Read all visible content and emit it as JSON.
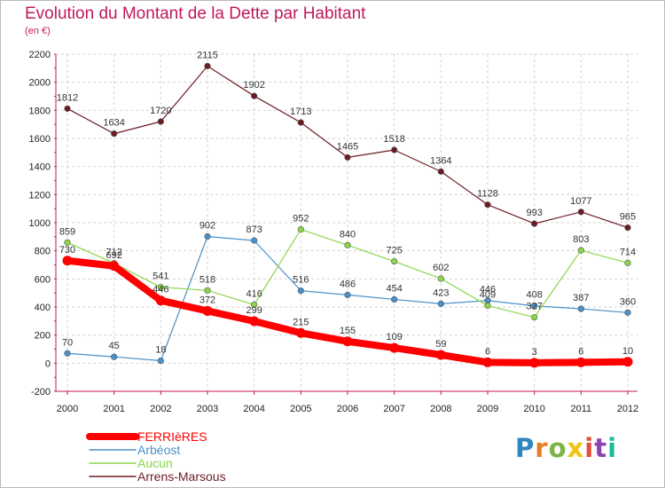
{
  "header": {
    "title": "Evolution du Montant de la Dette par Habitant",
    "subtitle": "(en €)"
  },
  "logo": {
    "text": "Proxiti",
    "colors": [
      "#2e86c1",
      "#e67e22",
      "#7cb342",
      "#f1c40f",
      "#e74c3c",
      "#8e44ad",
      "#1abc9c"
    ]
  },
  "chart_data": {
    "type": "line",
    "x": [
      "2000",
      "2001",
      "2002",
      "2003",
      "2004",
      "2005",
      "2006",
      "2007",
      "2008",
      "2009",
      "2010",
      "2011",
      "2012"
    ],
    "ylim": [
      -200,
      2200
    ],
    "yticks": [
      -200,
      0,
      200,
      400,
      600,
      800,
      1000,
      1200,
      1400,
      1600,
      1800,
      2000,
      2200
    ],
    "grid": true,
    "legend_position": "bottom-left",
    "series": [
      {
        "name": "FERRIèRES",
        "color": "#ff0000",
        "values": [
          730,
          692,
          446,
          372,
          299,
          215,
          155,
          109,
          59,
          6,
          3,
          6,
          10
        ]
      },
      {
        "name": "Arbéost",
        "color": "#4a90c8",
        "values": [
          70,
          45,
          18,
          902,
          873,
          516,
          486,
          454,
          423,
          446,
          408,
          387,
          360
        ]
      },
      {
        "name": "Aucun",
        "color": "#8bd64a",
        "values": [
          859,
          712,
          541,
          518,
          416,
          952,
          840,
          725,
          602,
          409,
          327,
          803,
          714
        ]
      },
      {
        "name": "Arrens-Marsous",
        "color": "#6b1c23",
        "values": [
          1812,
          1634,
          1720,
          2115,
          1902,
          1713,
          1465,
          1518,
          1364,
          1128,
          993,
          1077,
          965
        ]
      }
    ]
  }
}
